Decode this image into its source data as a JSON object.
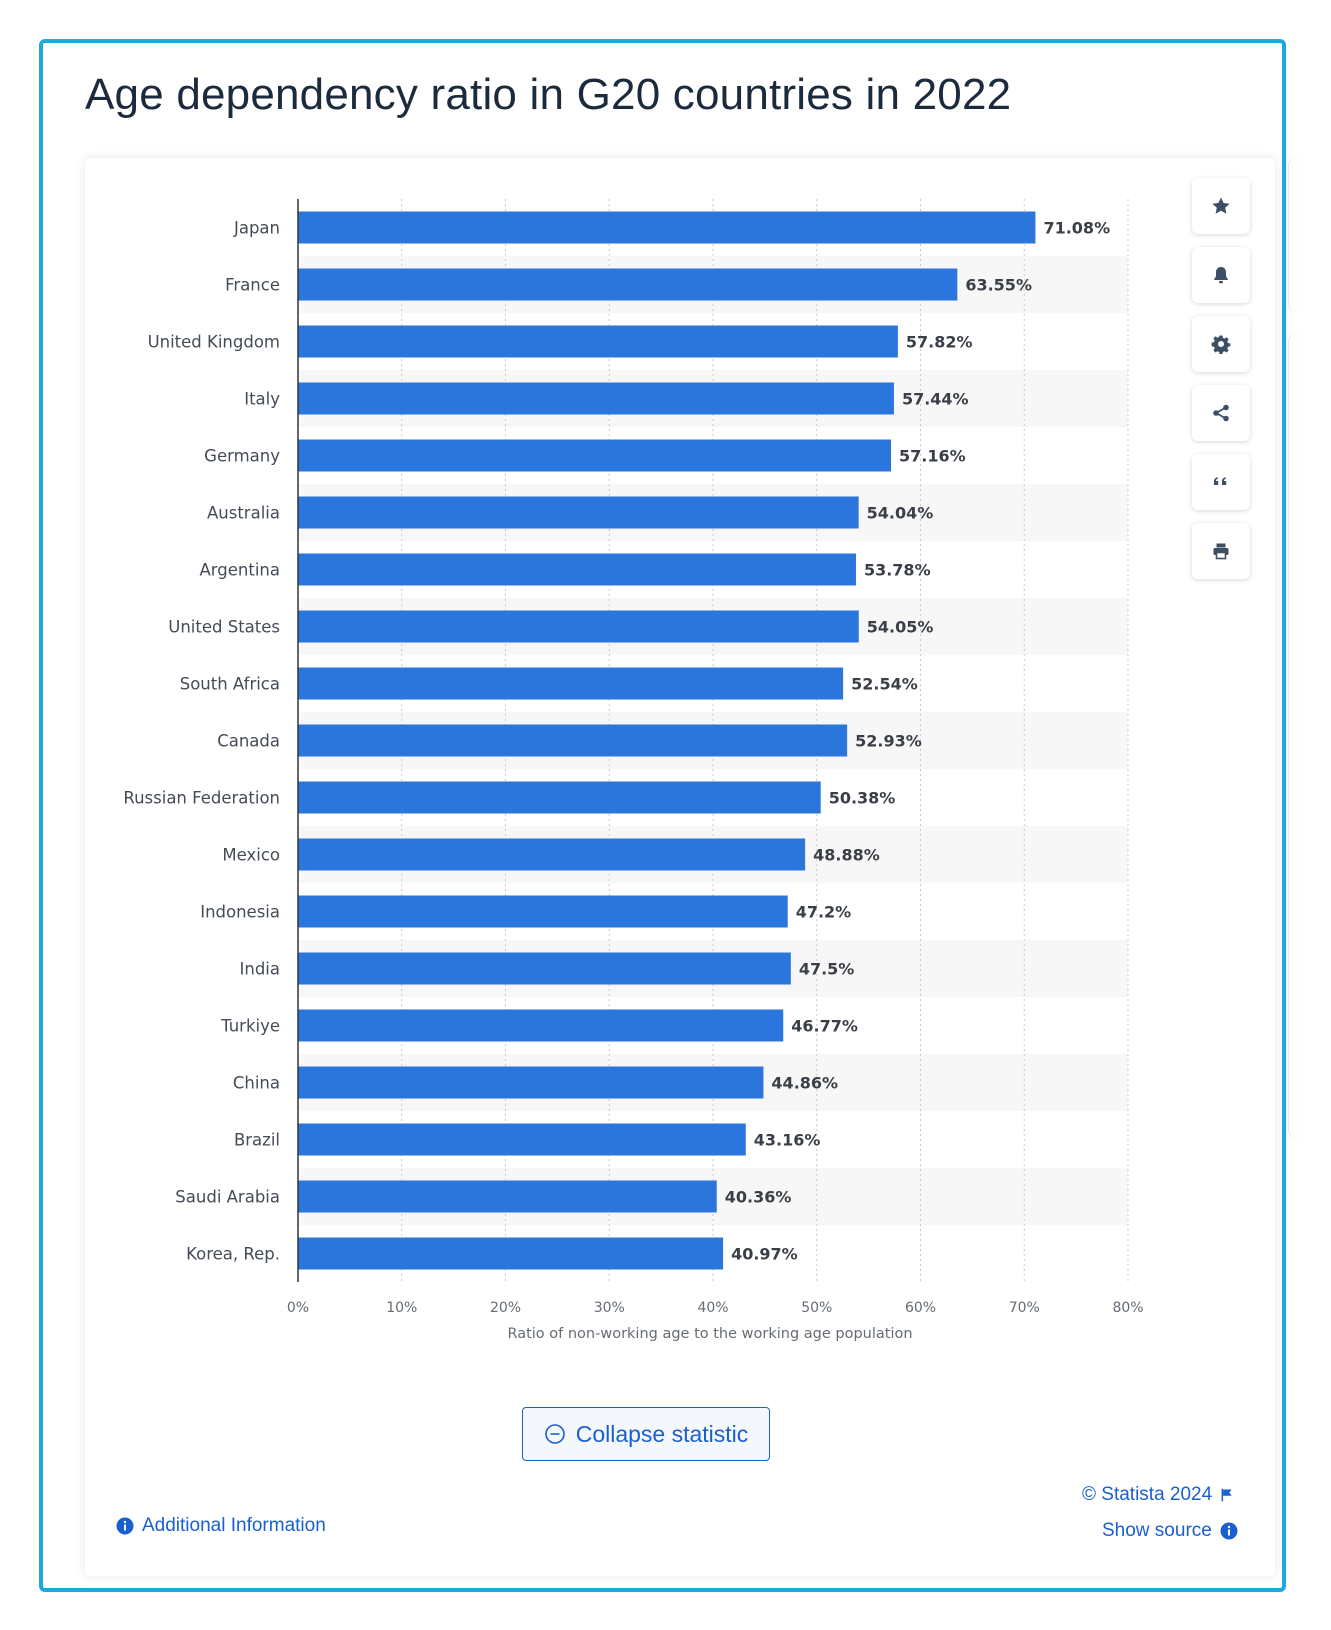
{
  "page": {
    "title": "Age dependency ratio in G20 countries in 2022"
  },
  "toolbar": {
    "buttons": [
      {
        "name": "star-icon",
        "label": "Favorite"
      },
      {
        "name": "bell-icon",
        "label": "Notification"
      },
      {
        "name": "gear-icon",
        "label": "Settings"
      },
      {
        "name": "share-icon",
        "label": "Share"
      },
      {
        "name": "quote-icon",
        "label": "Cite"
      },
      {
        "name": "printer-icon",
        "label": "Print"
      }
    ]
  },
  "actions": {
    "collapse_label": "Collapse statistic"
  },
  "footer": {
    "additional_info": "Additional Information",
    "copyright": "© Statista 2024",
    "show_source": "Show source"
  },
  "colors": {
    "bar": "#2a76dd",
    "accent": "#1a5fd0",
    "frame": "#21a7e0",
    "title": "#1b2a3c"
  },
  "chart_data": {
    "type": "bar",
    "orientation": "horizontal",
    "categories": [
      "Japan",
      "France",
      "United Kingdom",
      "Italy",
      "Germany",
      "Australia",
      "Argentina",
      "United States",
      "South Africa",
      "Canada",
      "Russian Federation",
      "Mexico",
      "Indonesia",
      "India",
      "Turkiye",
      "China",
      "Brazil",
      "Saudi Arabia",
      "Korea, Rep."
    ],
    "values": [
      71.08,
      63.55,
      57.82,
      57.44,
      57.16,
      54.04,
      53.78,
      54.05,
      52.54,
      52.93,
      50.38,
      48.88,
      47.2,
      47.5,
      46.77,
      44.86,
      43.16,
      40.36,
      40.97
    ],
    "value_labels": [
      "71.08%",
      "63.55%",
      "57.82%",
      "57.44%",
      "57.16%",
      "54.04%",
      "53.78%",
      "54.05%",
      "52.54%",
      "52.93%",
      "50.38%",
      "48.88%",
      "47.2%",
      "47.5%",
      "46.77%",
      "44.86%",
      "43.16%",
      "40.36%",
      "40.97%"
    ],
    "xlim": [
      0,
      80
    ],
    "xticks": [
      "0%",
      "10%",
      "20%",
      "30%",
      "40%",
      "50%",
      "60%",
      "70%",
      "80%"
    ],
    "xlabel": "Ratio of non-working age to the working age population",
    "ylabel": "",
    "title": "",
    "grid": "vertical dotted",
    "alternating_row_shading": true
  }
}
